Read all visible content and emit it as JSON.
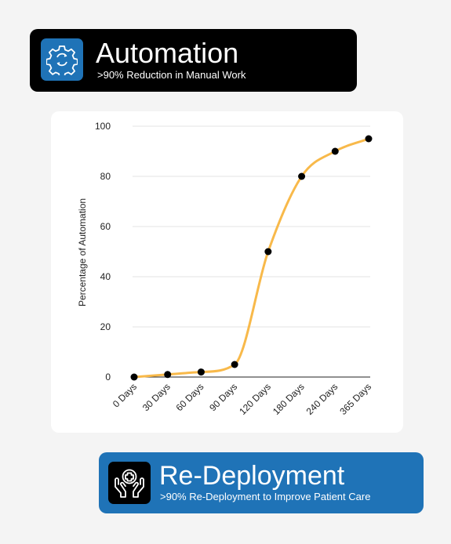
{
  "top_banner": {
    "title": "Automation",
    "subtitle": ">90% Reduction in Manual Work",
    "icon": "gear-sync-icon",
    "colors": {
      "background": "#000000",
      "icon_bg": "#1f73b7"
    }
  },
  "bottom_banner": {
    "title": "Re-Deployment",
    "subtitle": ">90% Re-Deployment to Improve Patient Care",
    "icon": "hands-medical-cross-icon",
    "colors": {
      "background": "#1f73b7",
      "icon_bg": "#000000"
    }
  },
  "chart_data": {
    "type": "line",
    "categories": [
      "0 Days",
      "30 Days",
      "60 Days",
      "90 Days",
      "120 Days",
      "180 Days",
      "240 Days",
      "365 Days"
    ],
    "values": [
      0,
      1,
      2,
      5,
      50,
      80,
      90,
      95
    ],
    "ylabel": "Percentage of Automation",
    "xlabel": "",
    "ylim": [
      0,
      100
    ],
    "yticks": [
      0,
      20,
      40,
      60,
      80,
      100
    ],
    "grid": true,
    "smooth": true,
    "line_color": "#f8b94a",
    "marker_color": "#000000"
  }
}
